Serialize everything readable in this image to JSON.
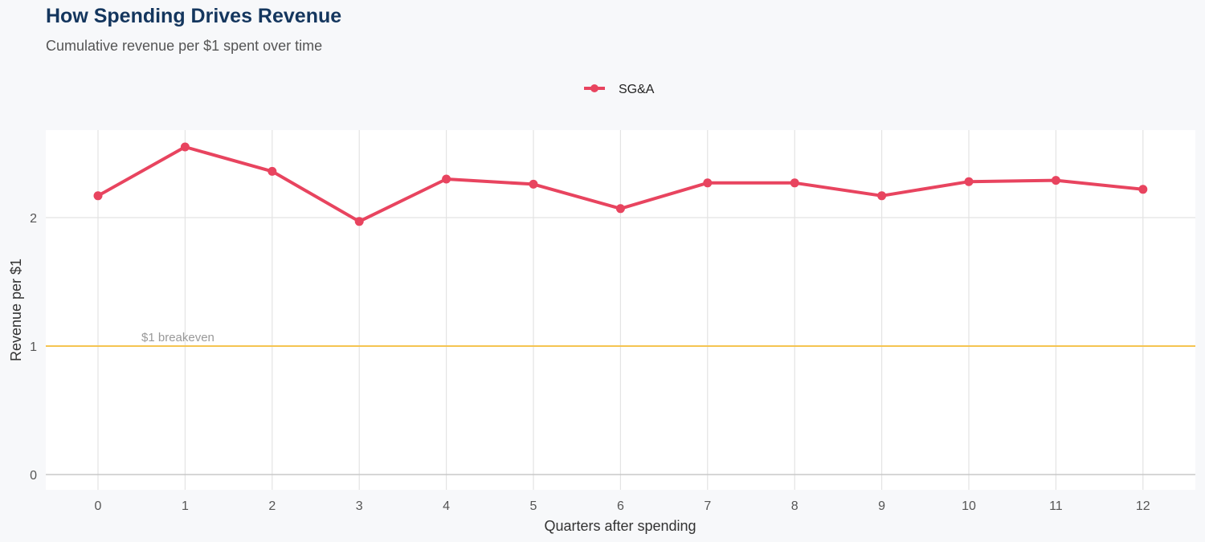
{
  "title": "How Spending Drives Revenue",
  "subtitle": "Cumulative revenue per $1 spent over time",
  "colors": {
    "series": "#e8445f",
    "breakeven": "#f5c451",
    "grid": "#e3e3e3",
    "title": "#14365e"
  },
  "chart_data": {
    "type": "line",
    "title": "How Spending Drives Revenue",
    "subtitle": "Cumulative revenue per $1 spent over time",
    "xlabel": "Quarters after spending",
    "ylabel": "Revenue per $1",
    "x": [
      0,
      1,
      2,
      3,
      4,
      5,
      6,
      7,
      8,
      9,
      10,
      11,
      12
    ],
    "xticks": [
      "0",
      "1",
      "2",
      "3",
      "4",
      "5",
      "6",
      "7",
      "8",
      "9",
      "10",
      "11",
      "12"
    ],
    "yticks": [
      "0",
      "1",
      "2"
    ],
    "ylim": [
      -0.12,
      2.68
    ],
    "xlim": [
      -0.6,
      12.6
    ],
    "grid": true,
    "legend": "top-center",
    "series": [
      {
        "name": "SG&A",
        "values": [
          2.17,
          2.55,
          2.36,
          1.97,
          2.3,
          2.26,
          2.07,
          2.27,
          2.27,
          2.17,
          2.28,
          2.29,
          2.22
        ]
      }
    ],
    "reference_line": {
      "y": 1,
      "label": "$1 breakeven"
    }
  }
}
